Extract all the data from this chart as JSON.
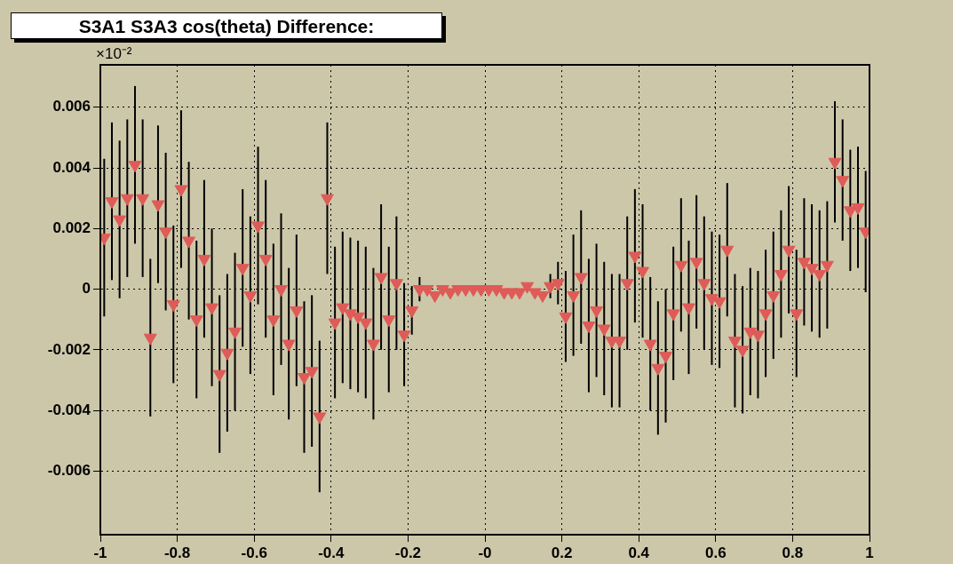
{
  "chart_data": {
    "type": "scatter",
    "title": "S3A1 S3A3 cos(theta) Difference:",
    "annotations": [
      "×10⁻²"
    ],
    "x": [
      -0.99,
      -0.97,
      -0.95,
      -0.93,
      -0.91,
      -0.89,
      -0.87,
      -0.85,
      -0.83,
      -0.81,
      -0.79,
      -0.77,
      -0.75,
      -0.73,
      -0.71,
      -0.69,
      -0.67,
      -0.65,
      -0.63,
      -0.61,
      -0.59,
      -0.57,
      -0.55,
      -0.53,
      -0.51,
      -0.49,
      -0.47,
      -0.45,
      -0.43,
      -0.41,
      -0.39,
      -0.37,
      -0.35,
      -0.33,
      -0.31,
      -0.29,
      -0.27,
      -0.25,
      -0.23,
      -0.21,
      -0.19,
      -0.17,
      -0.15,
      -0.13,
      -0.11,
      -0.09,
      -0.07,
      -0.05,
      -0.03,
      -0.01,
      0.01,
      0.03,
      0.05,
      0.07,
      0.09,
      0.11,
      0.13,
      0.15,
      0.17,
      0.19,
      0.21,
      0.23,
      0.25,
      0.27,
      0.29,
      0.31,
      0.33,
      0.35,
      0.37,
      0.39,
      0.41,
      0.43,
      0.45,
      0.47,
      0.49,
      0.51,
      0.53,
      0.55,
      0.57,
      0.59,
      0.61,
      0.63,
      0.65,
      0.67,
      0.69,
      0.71,
      0.73,
      0.75,
      0.77,
      0.79,
      0.81,
      0.83,
      0.85,
      0.87,
      0.89,
      0.91,
      0.93,
      0.95,
      0.97,
      0.99
    ],
    "series": [
      {
        "color": "#de5b57",
        "values": [
          0.0017,
          0.0029,
          0.0023,
          0.003,
          0.0041,
          0.003,
          -0.0016,
          0.0028,
          0.0019,
          -0.0005,
          0.0033,
          0.0016,
          -0.001,
          0.001,
          -0.0006,
          -0.0028,
          -0.0021,
          -0.0014,
          0.0007,
          -0.0002,
          0.0021,
          0.001,
          -0.001,
          0.0,
          -0.0018,
          -0.0007,
          -0.0029,
          -0.0027,
          -0.0042,
          0.003,
          -0.0011,
          -0.0006,
          -0.0008,
          -0.0009,
          -0.0011,
          -0.0018,
          0.0004,
          -0.001,
          0.0002,
          -0.0015,
          -0.0007,
          0.0,
          0.0,
          -0.0002,
          0.0,
          -0.0001,
          0.0,
          0.0,
          0.0,
          0.0,
          0.0,
          0.0,
          -0.0001,
          -0.0001,
          -0.0001,
          0.0001,
          -0.0001,
          -0.0002,
          0.0001,
          0.0002,
          -0.0009,
          -0.0002,
          0.0004,
          -0.0012,
          -0.0007,
          -0.0013,
          -0.0017,
          -0.0017,
          0.0002,
          0.0011,
          0.0006,
          -0.0018,
          -0.0026,
          -0.0022,
          -0.0008,
          0.0008,
          -0.0006,
          0.0009,
          0.0002,
          -0.0003,
          -0.0004,
          0.0013,
          -0.0017,
          -0.002,
          -0.0014,
          -0.0015,
          -0.0008,
          -0.0002,
          0.0005,
          0.0013,
          -0.0008,
          0.0009,
          0.0007,
          0.0005,
          0.0008,
          0.0042,
          0.0036,
          0.0026,
          0.0027,
          0.0019
        ],
        "errors": [
          0.0026,
          0.0026,
          0.0026,
          0.0026,
          0.0026,
          0.0026,
          0.0026,
          0.0026,
          0.0026,
          0.0026,
          0.0026,
          0.0026,
          0.0026,
          0.0026,
          0.0026,
          0.0026,
          0.0026,
          0.0026,
          0.0026,
          0.0026,
          0.0026,
          0.0026,
          0.0025,
          0.0025,
          0.0025,
          0.0025,
          0.0025,
          0.0025,
          0.0025,
          0.0025,
          0.0025,
          0.0025,
          0.0025,
          0.0025,
          0.0025,
          0.0025,
          0.0024,
          0.0024,
          0.0022,
          0.0017,
          0.0008,
          0.0004,
          null,
          null,
          null,
          null,
          null,
          null,
          null,
          null,
          null,
          null,
          null,
          null,
          null,
          null,
          null,
          null,
          0.0004,
          0.0007,
          0.0015,
          0.002,
          0.0022,
          0.0022,
          0.0022,
          0.0022,
          0.0022,
          0.0022,
          0.0022,
          0.0022,
          0.0022,
          0.0022,
          0.0022,
          0.0022,
          0.0022,
          0.0022,
          0.0022,
          0.0022,
          0.0022,
          0.0022,
          0.0022,
          0.0022,
          0.0022,
          0.0021,
          0.0021,
          0.0021,
          0.0021,
          0.0021,
          0.0021,
          0.0021,
          0.0021,
          0.0021,
          0.0021,
          0.0021,
          0.0021,
          0.002,
          0.002,
          0.002,
          0.002,
          0.002
        ]
      }
    ],
    "xlim": [
      -1,
      1
    ],
    "ylim": [
      -0.0081,
      0.0074
    ],
    "xticks": [
      -1,
      -0.8,
      -0.6,
      -0.4,
      -0.2,
      {
        "value": 0,
        "label": "-0"
      },
      0.2,
      0.4,
      0.6,
      0.8,
      1
    ],
    "yticks": [
      -0.006,
      -0.004,
      -0.002,
      0,
      0.002,
      0.004,
      0.006
    ],
    "grid": true,
    "legend": false,
    "marker": "triangle"
  }
}
